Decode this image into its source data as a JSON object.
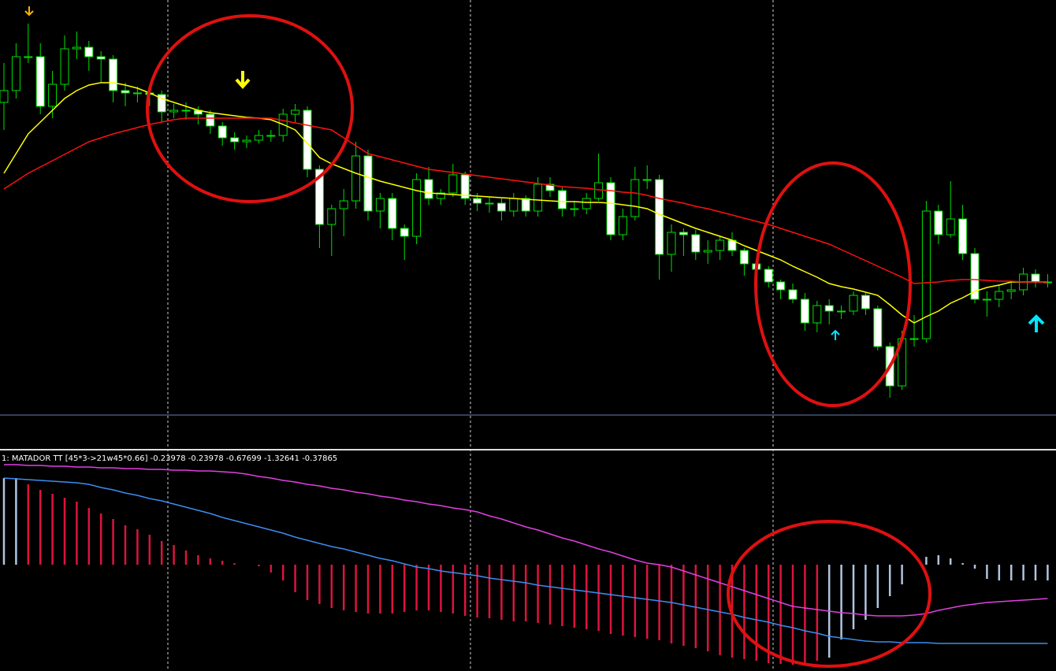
{
  "indicator": {
    "label": "1: MATADOR TT [45*3->21w45*0.66] -0.23978 -0.23978 -0.67699 -1.32641 -0.37865"
  },
  "chart_data": [
    {
      "type": "candlestick",
      "ylim": [
        0,
        530
      ],
      "up_color": "#000000",
      "down_color": "#ffffff",
      "wick_color": "#00e000",
      "open": [
        400,
        415,
        458,
        458,
        395,
        423,
        468,
        470,
        458,
        455,
        415,
        412,
        412,
        410,
        388,
        390,
        390,
        385,
        370,
        355,
        350,
        352,
        358,
        358,
        385,
        390,
        315,
        245,
        265,
        275,
        332,
        262,
        278,
        240,
        230,
        302,
        278,
        285,
        308,
        278,
        272,
        272,
        262,
        278,
        262,
        296,
        288,
        265,
        265,
        278,
        298,
        232,
        255,
        302,
        302,
        207,
        235,
        232,
        210,
        212,
        225,
        212,
        195,
        188,
        172,
        162,
        150,
        120,
        142,
        135,
        135,
        155,
        138,
        90,
        40,
        100,
        100,
        262,
        232,
        252,
        208,
        150,
        150,
        160,
        162,
        182,
        172
      ],
      "close": [
        415,
        458,
        458,
        395,
        423,
        468,
        470,
        458,
        455,
        415,
        412,
        412,
        410,
        388,
        390,
        390,
        385,
        370,
        355,
        350,
        352,
        358,
        358,
        385,
        390,
        315,
        245,
        265,
        275,
        332,
        262,
        278,
        240,
        230,
        302,
        278,
        285,
        308,
        278,
        272,
        272,
        262,
        278,
        262,
        296,
        288,
        265,
        265,
        278,
        298,
        232,
        255,
        302,
        302,
        207,
        235,
        232,
        210,
        212,
        225,
        212,
        195,
        188,
        172,
        162,
        150,
        120,
        142,
        135,
        135,
        155,
        138,
        90,
        40,
        100,
        100,
        262,
        232,
        252,
        208,
        150,
        150,
        160,
        162,
        182,
        172,
        172
      ],
      "high": [
        450,
        475,
        500,
        475,
        440,
        485,
        490,
        478,
        465,
        460,
        425,
        420,
        418,
        415,
        398,
        400,
        395,
        390,
        375,
        362,
        358,
        365,
        365,
        392,
        398,
        395,
        320,
        270,
        290,
        350,
        340,
        285,
        285,
        245,
        310,
        318,
        290,
        322,
        312,
        285,
        280,
        278,
        285,
        282,
        305,
        305,
        292,
        275,
        285,
        335,
        305,
        265,
        318,
        320,
        308,
        245,
        240,
        238,
        225,
        230,
        235,
        215,
        200,
        192,
        175,
        170,
        158,
        148,
        150,
        142,
        160,
        158,
        142,
        95,
        110,
        130,
        275,
        270,
        300,
        270,
        215,
        160,
        168,
        172,
        190,
        188,
        182
      ],
      "low": [
        365,
        405,
        450,
        385,
        380,
        415,
        455,
        440,
        425,
        400,
        395,
        400,
        395,
        375,
        380,
        378,
        372,
        360,
        345,
        340,
        342,
        348,
        350,
        350,
        375,
        305,
        215,
        205,
        230,
        265,
        250,
        240,
        225,
        200,
        220,
        270,
        270,
        280,
        270,
        262,
        260,
        250,
        255,
        255,
        255,
        280,
        255,
        255,
        258,
        275,
        225,
        225,
        250,
        290,
        175,
        185,
        205,
        200,
        195,
        200,
        205,
        180,
        175,
        165,
        150,
        145,
        110,
        108,
        118,
        125,
        130,
        130,
        85,
        25,
        35,
        90,
        95,
        220,
        228,
        200,
        145,
        128,
        140,
        150,
        155,
        165,
        165
      ],
      "lines": [
        {
          "color": "#ffff00",
          "values": [
            310,
            335,
            360,
            375,
            390,
            405,
            415,
            422,
            425,
            425,
            422,
            418,
            412,
            405,
            400,
            395,
            390,
            387,
            385,
            383,
            381,
            380,
            378,
            372,
            365,
            348,
            330,
            322,
            316,
            310,
            305,
            300,
            296,
            292,
            288,
            285,
            284,
            283,
            282,
            281,
            280,
            279,
            278,
            277,
            276,
            275,
            274,
            274,
            273,
            273,
            272,
            270,
            268,
            265,
            258,
            252,
            246,
            240,
            235,
            230,
            225,
            218,
            212,
            206,
            200,
            192,
            185,
            178,
            170,
            166,
            163,
            159,
            155,
            143,
            130,
            120,
            128,
            135,
            145,
            152,
            160,
            165,
            168,
            172,
            172,
            172,
            172
          ]
        },
        {
          "color": "#ff1010",
          "values": [
            290,
            300,
            310,
            318,
            326,
            334,
            342,
            350,
            355,
            360,
            364,
            368,
            372,
            375,
            378,
            380,
            380,
            380,
            380,
            380,
            380,
            380,
            380,
            377,
            374,
            371,
            368,
            365,
            355,
            345,
            335,
            331,
            327,
            323,
            319,
            315,
            313,
            311,
            309,
            307,
            305,
            303,
            301,
            299,
            297,
            295,
            293,
            292,
            291,
            289,
            288,
            286,
            285,
            282,
            278,
            275,
            272,
            268,
            265,
            261,
            257,
            253,
            249,
            245,
            240,
            235,
            230,
            225,
            220,
            213,
            206,
            199,
            192,
            185,
            178,
            170,
            171,
            172,
            174,
            175,
            175,
            174,
            173,
            173,
            172,
            172,
            172
          ]
        }
      ]
    },
    {
      "type": "histogram",
      "ylim": [
        -135,
        142
      ],
      "values": [
        110,
        110,
        102,
        95,
        90,
        85,
        80,
        72,
        65,
        58,
        50,
        45,
        38,
        30,
        25,
        18,
        12,
        8,
        5,
        2,
        0,
        -2,
        -10,
        -20,
        -35,
        -45,
        -50,
        -55,
        -58,
        -60,
        -62,
        -62,
        -62,
        -60,
        -58,
        -58,
        -60,
        -62,
        -65,
        -67,
        -68,
        -70,
        -72,
        -72,
        -74,
        -76,
        -78,
        -80,
        -82,
        -84,
        -88,
        -90,
        -92,
        -94,
        -96,
        -100,
        -103,
        -106,
        -110,
        -115,
        -118,
        -120,
        -122,
        -125,
        -126,
        -127,
        -125,
        -122,
        -118,
        -95,
        -82,
        -70,
        -55,
        -40,
        -25,
        0,
        10,
        12,
        8,
        2,
        -5,
        -18,
        -20,
        -20,
        -20,
        -20,
        -20
      ],
      "colors": [
        "#b0c4de",
        "#b0c4de",
        "#dc143c",
        "#dc143c",
        "#dc143c",
        "#dc143c",
        "#dc143c",
        "#dc143c",
        "#dc143c",
        "#dc143c",
        "#dc143c",
        "#dc143c",
        "#dc143c",
        "#dc143c",
        "#dc143c",
        "#dc143c",
        "#dc143c",
        "#dc143c",
        "#dc143c",
        "#dc143c",
        "#dc143c",
        "#dc143c",
        "#dc143c",
        "#dc143c",
        "#dc143c",
        "#dc143c",
        "#dc143c",
        "#dc143c",
        "#dc143c",
        "#dc143c",
        "#dc143c",
        "#dc143c",
        "#dc143c",
        "#dc143c",
        "#dc143c",
        "#dc143c",
        "#dc143c",
        "#dc143c",
        "#dc143c",
        "#dc143c",
        "#dc143c",
        "#dc143c",
        "#dc143c",
        "#dc143c",
        "#dc143c",
        "#dc143c",
        "#dc143c",
        "#dc143c",
        "#dc143c",
        "#dc143c",
        "#dc143c",
        "#dc143c",
        "#dc143c",
        "#dc143c",
        "#dc143c",
        "#dc143c",
        "#dc143c",
        "#dc143c",
        "#dc143c",
        "#dc143c",
        "#dc143c",
        "#dc143c",
        "#dc143c",
        "#dc143c",
        "#dc143c",
        "#dc143c",
        "#dc143c",
        "#dc143c",
        "#b0c4de",
        "#b0c4de",
        "#b0c4de",
        "#b0c4de",
        "#b0c4de",
        "#b0c4de",
        "#b0c4de",
        "#b0c4de",
        "#b0c4de",
        "#b0c4de",
        "#b0c4de",
        "#b0c4de",
        "#b0c4de",
        "#b0c4de",
        "#b0c4de",
        "#b0c4de",
        "#b0c4de",
        "#b0c4de",
        "#b0c4de"
      ],
      "lines": [
        {
          "color": "#e040e0",
          "values": [
            127,
            127,
            126,
            126,
            125,
            125,
            124,
            124,
            123,
            123,
            122,
            122,
            121,
            121,
            120,
            120,
            119,
            119,
            118,
            117,
            115,
            112,
            110,
            107,
            105,
            102,
            100,
            97,
            95,
            92,
            90,
            87,
            85,
            82,
            80,
            77,
            75,
            72,
            70,
            67,
            62,
            58,
            53,
            48,
            44,
            39,
            34,
            30,
            25,
            20,
            16,
            11,
            6,
            2,
            0,
            -3,
            -8,
            -13,
            -18,
            -23,
            -28,
            -33,
            -38,
            -43,
            -48,
            -53,
            -55,
            -57,
            -59,
            -61,
            -62,
            -64,
            -65,
            -65,
            -65,
            -64,
            -62,
            -58,
            -55,
            -52,
            -50,
            -48,
            -47,
            -46,
            -45,
            -44,
            -43
          ]
        },
        {
          "color": "#3c8cf0",
          "values": [
            110,
            109,
            108,
            107,
            106,
            105,
            104,
            102,
            98,
            95,
            91,
            88,
            84,
            81,
            77,
            73,
            69,
            65,
            60,
            56,
            52,
            48,
            44,
            40,
            35,
            31,
            27,
            23,
            20,
            16,
            12,
            8,
            5,
            1,
            -3,
            -5,
            -8,
            -10,
            -12,
            -14,
            -17,
            -19,
            -21,
            -23,
            -26,
            -28,
            -30,
            -32,
            -34,
            -36,
            -38,
            -40,
            -42,
            -44,
            -46,
            -48,
            -51,
            -54,
            -57,
            -60,
            -63,
            -67,
            -70,
            -73,
            -77,
            -80,
            -84,
            -87,
            -91,
            -93,
            -95,
            -97,
            -98,
            -98,
            -99,
            -99,
            -99,
            -100,
            -100,
            -100,
            -100,
            -100,
            -100,
            -100,
            -100,
            -100,
            -100
          ]
        }
      ]
    }
  ]
}
